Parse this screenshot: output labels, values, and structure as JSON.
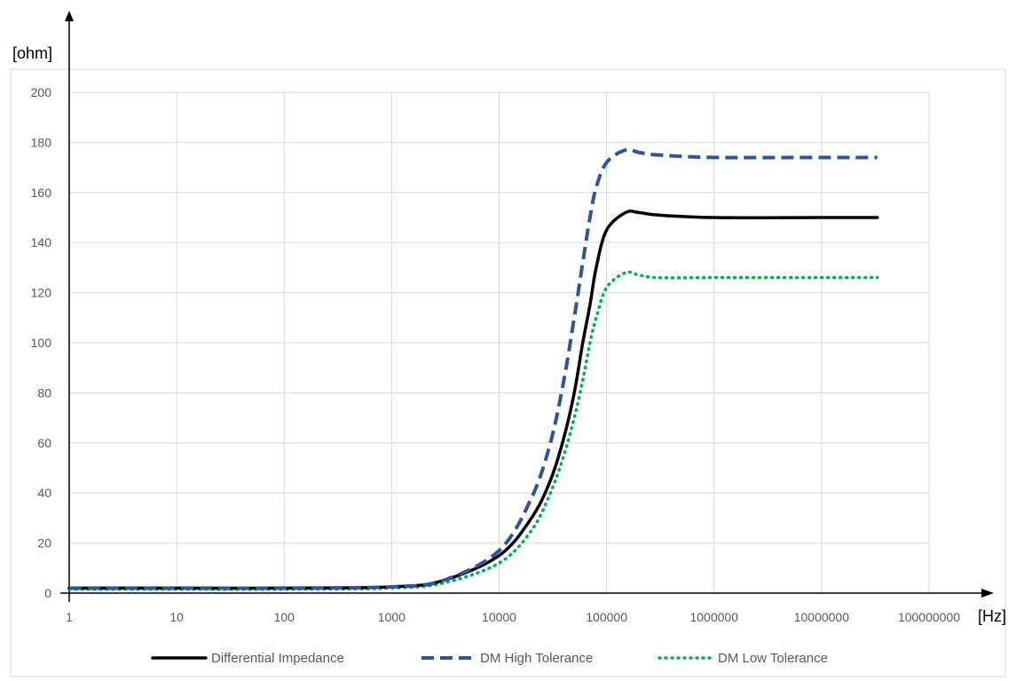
{
  "chart_data": {
    "type": "line",
    "x_scale": "log",
    "xlabel": "[Hz]",
    "ylabel": "[ohm]",
    "xlim": [
      1,
      100000000
    ],
    "ylim": [
      0,
      200
    ],
    "x_ticks": [
      "1",
      "10",
      "100",
      "1000",
      "10000",
      "100000",
      "1000000",
      "10000000",
      "100000000"
    ],
    "y_ticks": [
      "0",
      "20",
      "40",
      "60",
      "80",
      "100",
      "120",
      "140",
      "160",
      "180",
      "200"
    ],
    "grid": true,
    "legend_position": "bottom",
    "series": [
      {
        "name": "Differential Impedance",
        "color": "#000000",
        "style": "solid",
        "x": [
          1,
          10,
          100,
          1000,
          3000,
          10000,
          20000,
          30000,
          40000,
          50000,
          60000,
          70000,
          80000,
          100000,
          150000,
          200000,
          300000,
          1000000,
          10000000,
          33000000
        ],
        "y": [
          2,
          2,
          2,
          2.5,
          5,
          15,
          30,
          45,
          62,
          80,
          100,
          115,
          130,
          145,
          152,
          152,
          151,
          150,
          150,
          150
        ]
      },
      {
        "name": "DM High Tolerance",
        "color": "#2f5597",
        "style": "dashed",
        "x": [
          1,
          10,
          100,
          1000,
          3000,
          10000,
          20000,
          30000,
          40000,
          50000,
          60000,
          70000,
          80000,
          100000,
          150000,
          200000,
          300000,
          1000000,
          10000000,
          33000000
        ],
        "y": [
          2,
          2,
          2,
          2.5,
          5,
          17,
          38,
          60,
          85,
          110,
          132,
          150,
          162,
          172,
          177,
          176,
          175,
          174,
          174,
          174
        ]
      },
      {
        "name": "DM Low Tolerance",
        "color": "#00b050",
        "style": "dotted",
        "x": [
          1,
          10,
          100,
          1000,
          3000,
          10000,
          20000,
          30000,
          40000,
          50000,
          60000,
          70000,
          80000,
          100000,
          150000,
          200000,
          300000,
          1000000,
          10000000,
          33000000
        ],
        "y": [
          1.5,
          1.5,
          1.5,
          2,
          4,
          12,
          25,
          40,
          55,
          70,
          85,
          100,
          110,
          122,
          128,
          127,
          126,
          126,
          126,
          126
        ]
      }
    ]
  }
}
